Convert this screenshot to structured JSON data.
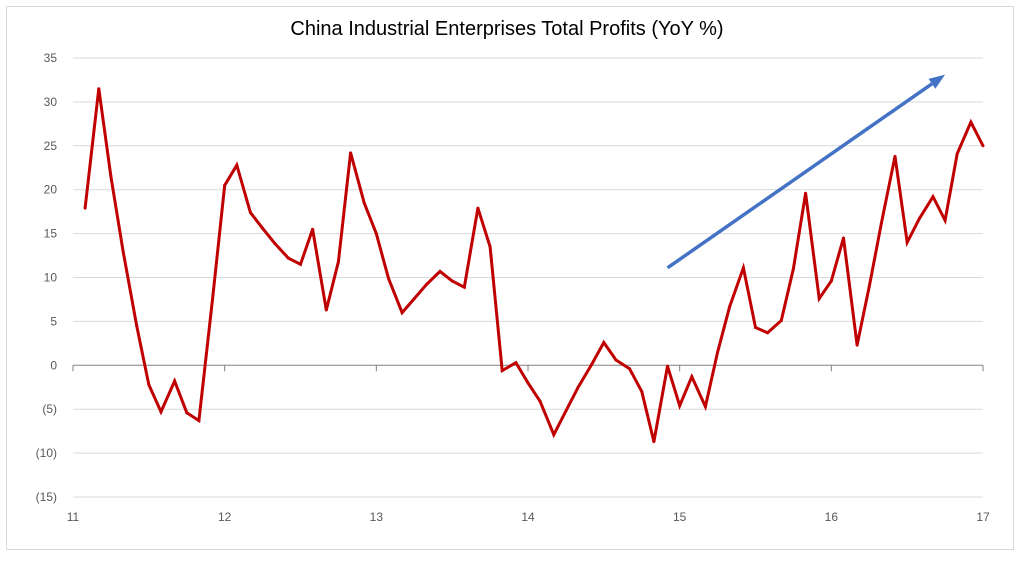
{
  "chart_data": {
    "type": "line",
    "title": "China Industrial Enterprises Total Profits (YoY %)",
    "xlabel": "",
    "ylabel": "",
    "ylim": [
      -15,
      35
    ],
    "y_ticks": [
      35,
      30,
      25,
      20,
      15,
      10,
      5,
      0,
      -5,
      -10,
      -15
    ],
    "y_tick_labels": [
      "35",
      "30",
      "25",
      "20",
      "15",
      "10",
      "5",
      "0",
      "(5)",
      "(10)",
      "(15)"
    ],
    "x_ticks": [
      11,
      12,
      13,
      14,
      15,
      16,
      17
    ],
    "x_tick_labels": [
      "11",
      "12",
      "13",
      "14",
      "15",
      "16",
      "17"
    ],
    "grid": true,
    "legend": "none",
    "series": [
      {
        "color": "#c00000",
        "x": [
          11.08,
          11.17,
          11.25,
          11.33,
          11.42,
          11.5,
          11.58,
          11.67,
          11.75,
          11.83,
          11.92,
          12.0,
          12.08,
          12.17,
          12.25,
          12.33,
          12.42,
          12.5,
          12.58,
          12.67,
          12.75,
          12.83,
          12.92,
          13.0,
          13.08,
          13.17,
          13.25,
          13.33,
          13.42,
          13.5,
          13.58,
          13.67,
          13.75,
          13.83,
          13.92,
          14.0,
          14.08,
          14.17,
          14.25,
          14.33,
          14.42,
          14.5,
          14.58,
          14.67,
          14.75,
          14.83,
          14.92,
          15.0,
          15.08,
          15.17,
          15.25,
          15.33,
          15.42,
          15.5,
          15.58,
          15.67,
          15.75,
          15.83,
          15.92,
          16.0,
          16.08,
          16.17,
          16.25,
          16.33,
          16.42,
          16.5,
          16.58,
          16.67,
          16.75,
          16.83,
          16.92,
          17.0
        ],
        "values": [
          17.9,
          31.5,
          21.5,
          13.0,
          4.5,
          -2.2,
          -5.3,
          -1.8,
          -5.4,
          -6.3,
          7.5,
          20.5,
          22.8,
          17.4,
          15.6,
          13.9,
          12.2,
          11.5,
          15.5,
          6.3,
          11.8,
          24.2,
          18.5,
          15.0,
          9.9,
          6.0,
          7.6,
          9.2,
          10.7,
          9.6,
          8.9,
          17.9,
          13.5,
          -0.6,
          0.3,
          -2.0,
          -4.1,
          -7.9,
          -5.2,
          -2.5,
          0.1,
          2.6,
          0.6,
          -0.4,
          -3.0,
          -8.7,
          -0.1,
          -4.6,
          -1.3,
          -4.7,
          1.5,
          6.7,
          11.1,
          4.3,
          3.7,
          5.1,
          11.0,
          19.6,
          7.6,
          9.6,
          14.5,
          2.3,
          9.0,
          16.2,
          23.8,
          14.0,
          16.7,
          19.2,
          16.5,
          24.1,
          27.7,
          25.0
        ]
      }
    ],
    "annotations": [
      {
        "type": "arrow",
        "color": "#4472c4",
        "x_start": 14.92,
        "y_start": 11.1,
        "x_end": 16.75,
        "y_end": 33.1
      }
    ]
  }
}
